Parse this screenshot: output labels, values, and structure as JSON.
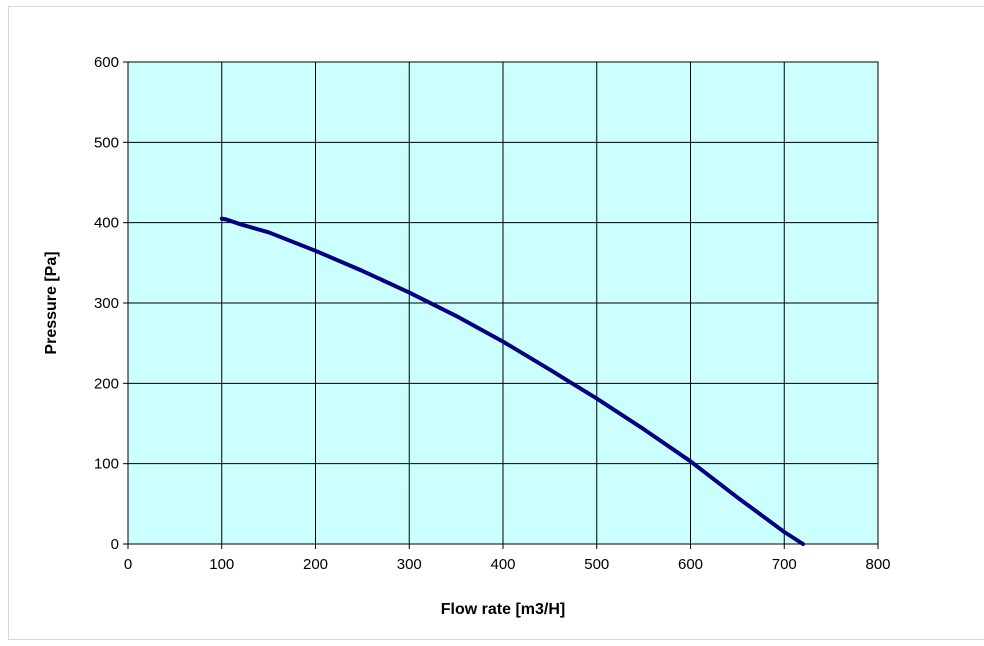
{
  "chart_data": {
    "type": "line",
    "title": "",
    "xlabel": "Flow rate [m3/H]",
    "ylabel": "Pressure [Pa]",
    "xlim": [
      0,
      800
    ],
    "ylim": [
      0,
      600
    ],
    "x_ticks": [
      0,
      100,
      200,
      300,
      400,
      500,
      600,
      700,
      800
    ],
    "y_ticks": [
      0,
      100,
      200,
      300,
      400,
      500,
      600
    ],
    "grid": true,
    "legend": "none",
    "plot_background": "#ccffff",
    "series": [
      {
        "color": "#000080",
        "x": [
          100,
          105,
          120,
          150,
          200,
          250,
          300,
          350,
          400,
          450,
          500,
          550,
          600,
          650,
          700,
          720
        ],
        "y": [
          405,
          404,
          398,
          388,
          365,
          340,
          313,
          284,
          252,
          217,
          181,
          143,
          103,
          58,
          15,
          0
        ]
      }
    ]
  }
}
